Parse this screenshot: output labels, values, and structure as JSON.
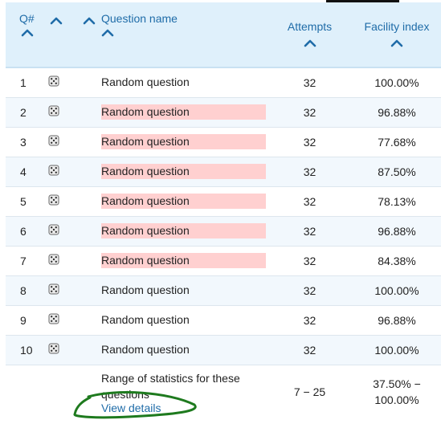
{
  "header": {
    "qnum": "Q#",
    "question_name": "Question name",
    "attempts": "Attempts",
    "facility_index": "Facility index"
  },
  "rows": [
    {
      "num": "1",
      "name": "Random question",
      "flagged": false,
      "attempts": "32",
      "facility": "100.00%"
    },
    {
      "num": "2",
      "name": "Random question",
      "flagged": true,
      "attempts": "32",
      "facility": "96.88%"
    },
    {
      "num": "3",
      "name": "Random question",
      "flagged": true,
      "attempts": "32",
      "facility": "77.68%"
    },
    {
      "num": "4",
      "name": "Random question",
      "flagged": true,
      "attempts": "32",
      "facility": "87.50%"
    },
    {
      "num": "5",
      "name": "Random question",
      "flagged": true,
      "attempts": "32",
      "facility": "78.13%"
    },
    {
      "num": "6",
      "name": "Random question",
      "flagged": true,
      "attempts": "32",
      "facility": "96.88%"
    },
    {
      "num": "7",
      "name": "Random question",
      "flagged": true,
      "attempts": "32",
      "facility": "84.38%"
    },
    {
      "num": "8",
      "name": "Random question",
      "flagged": false,
      "attempts": "32",
      "facility": "100.00%"
    },
    {
      "num": "9",
      "name": "Random question",
      "flagged": false,
      "attempts": "32",
      "facility": "96.88%"
    },
    {
      "num": "10",
      "name": "Random question",
      "flagged": false,
      "attempts": "32",
      "facility": "100.00%"
    }
  ],
  "summary": {
    "label": "Range of statistics for these questions",
    "link": "View details",
    "attempts": "7 − 25",
    "facility_line1": "37.50% −",
    "facility_line2": "100.00%"
  },
  "colors": {
    "header_bg": "#dff0fb",
    "link_blue": "#1f6ca8",
    "flag_bg": "#ffd0d0",
    "alt_row_bg": "#f2f8fd",
    "annotation_green": "#1e7a1e"
  },
  "icons": {
    "sort": "chevron-up-icon",
    "question_type": "dice-icon"
  }
}
